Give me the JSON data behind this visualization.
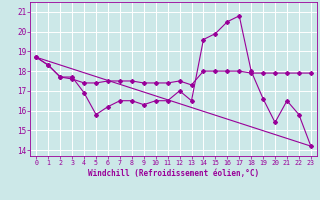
{
  "xlabel": "Windchill (Refroidissement éolien,°C)",
  "bg_color": "#cce8e8",
  "line_color": "#990099",
  "grid_color": "#ffffff",
  "xlim": [
    -0.5,
    23.5
  ],
  "ylim": [
    13.7,
    21.5
  ],
  "yticks": [
    14,
    15,
    16,
    17,
    18,
    19,
    20,
    21
  ],
  "xticks": [
    0,
    1,
    2,
    3,
    4,
    5,
    6,
    7,
    8,
    9,
    10,
    11,
    12,
    13,
    14,
    15,
    16,
    17,
    18,
    19,
    20,
    21,
    22,
    23
  ],
  "series1_x": [
    0,
    1,
    2,
    3,
    4,
    5,
    6,
    7,
    8,
    9,
    10,
    11,
    12,
    13,
    14,
    15,
    16,
    17,
    18,
    19,
    20,
    21,
    22,
    23
  ],
  "series1_y": [
    18.7,
    18.3,
    17.7,
    17.7,
    16.9,
    15.8,
    16.2,
    16.5,
    16.5,
    16.3,
    16.5,
    16.5,
    17.0,
    16.5,
    19.6,
    19.9,
    20.5,
    20.8,
    18.0,
    16.6,
    15.4,
    16.5,
    15.8,
    14.2
  ],
  "series2_x": [
    0,
    1,
    2,
    3,
    4,
    5,
    6,
    7,
    8,
    9,
    10,
    11,
    12,
    13,
    14,
    15,
    16,
    17,
    18,
    19,
    20,
    21,
    22,
    23
  ],
  "series2_y": [
    18.7,
    18.3,
    17.7,
    17.6,
    17.4,
    17.4,
    17.5,
    17.5,
    17.5,
    17.4,
    17.4,
    17.4,
    17.5,
    17.3,
    18.0,
    18.0,
    18.0,
    18.0,
    17.9,
    17.9,
    17.9,
    17.9,
    17.9,
    17.9
  ],
  "series3_x": [
    0,
    23
  ],
  "series3_y": [
    18.7,
    14.2
  ],
  "marker_size": 2.0,
  "line_width": 0.8
}
